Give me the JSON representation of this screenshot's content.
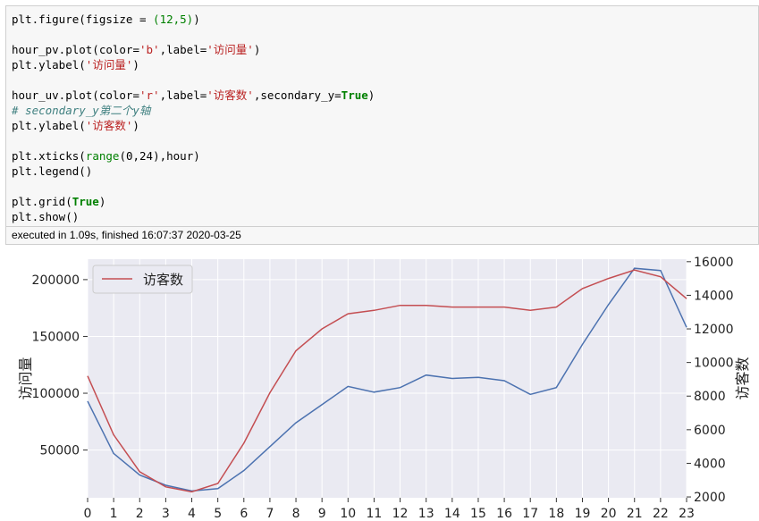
{
  "code": {
    "lines": [
      [
        {
          "t": "plt.figure(figsize = "
        },
        {
          "t": "(12,5)",
          "c": "num"
        },
        {
          "t": ")"
        }
      ],
      [],
      [
        {
          "t": "hour_pv.plot(color="
        },
        {
          "t": "'b'",
          "c": "str"
        },
        {
          "t": ",label="
        },
        {
          "t": "'访问量'",
          "c": "str"
        },
        {
          "t": ")"
        }
      ],
      [
        {
          "t": "plt.ylabel("
        },
        {
          "t": "'访问量'",
          "c": "str"
        },
        {
          "t": ")"
        }
      ],
      [],
      [
        {
          "t": "hour_uv.plot(color="
        },
        {
          "t": "'r'",
          "c": "str"
        },
        {
          "t": ",label="
        },
        {
          "t": "'访客数'",
          "c": "str"
        },
        {
          "t": ",secondary_y="
        },
        {
          "t": "True",
          "c": "kw"
        },
        {
          "t": ")"
        }
      ],
      [
        {
          "t": "# secondary_y第二个y轴",
          "c": "cmt"
        }
      ],
      [
        {
          "t": "plt.ylabel("
        },
        {
          "t": "'访客数'",
          "c": "str"
        },
        {
          "t": ")"
        }
      ],
      [],
      [
        {
          "t": "plt.xticks("
        },
        {
          "t": "range",
          "c": "num"
        },
        {
          "t": "(0,24),hour)"
        }
      ],
      [
        {
          "t": "plt.legend()"
        }
      ],
      [],
      [
        {
          "t": "plt.grid("
        },
        {
          "t": "True",
          "c": "kw"
        },
        {
          "t": ")"
        }
      ],
      [
        {
          "t": "plt.show()"
        }
      ]
    ]
  },
  "status_text": "executed in 1.09s, finished 16:07:37 2020-03-25",
  "colors": {
    "pv": "#4c72b0",
    "uv": "#c44e52",
    "plot_bg": "#eaeaf2"
  },
  "chart_data": {
    "type": "line",
    "categories": [
      "0",
      "1",
      "2",
      "3",
      "4",
      "5",
      "6",
      "7",
      "8",
      "9",
      "10",
      "11",
      "12",
      "13",
      "14",
      "15",
      "16",
      "17",
      "18",
      "19",
      "20",
      "21",
      "22",
      "23"
    ],
    "series": [
      {
        "axis": "left",
        "color": "blue",
        "values": [
          93000,
          47000,
          28000,
          19000,
          14000,
          16000,
          32000,
          53000,
          74000,
          90000,
          106000,
          101000,
          105000,
          116000,
          113000,
          114000,
          111000,
          99000,
          105000,
          143000,
          178000,
          210000,
          208000,
          158000
        ]
      },
      {
        "name": "访客数",
        "axis": "right",
        "color": "red",
        "values": [
          9200,
          5700,
          3500,
          2600,
          2300,
          2800,
          5200,
          8200,
          10700,
          12000,
          12900,
          13100,
          13400,
          13400,
          13300,
          13300,
          13300,
          13100,
          13300,
          14400,
          15000,
          15500,
          15100,
          13800
        ]
      }
    ],
    "ylabel": "访问量",
    "ylabel_right": "访客数",
    "yticks_left": [
      "50000",
      "100000",
      "150000",
      "200000"
    ],
    "yticks_right": [
      "2000",
      "4000",
      "6000",
      "8000",
      "10000",
      "12000",
      "14000",
      "16000"
    ],
    "ylim_left": [
      8000,
      218000
    ],
    "ylim_right": [
      1950,
      16150
    ],
    "grid": true,
    "legend": {
      "placement": "top-left",
      "entries": [
        "访客数"
      ]
    }
  }
}
